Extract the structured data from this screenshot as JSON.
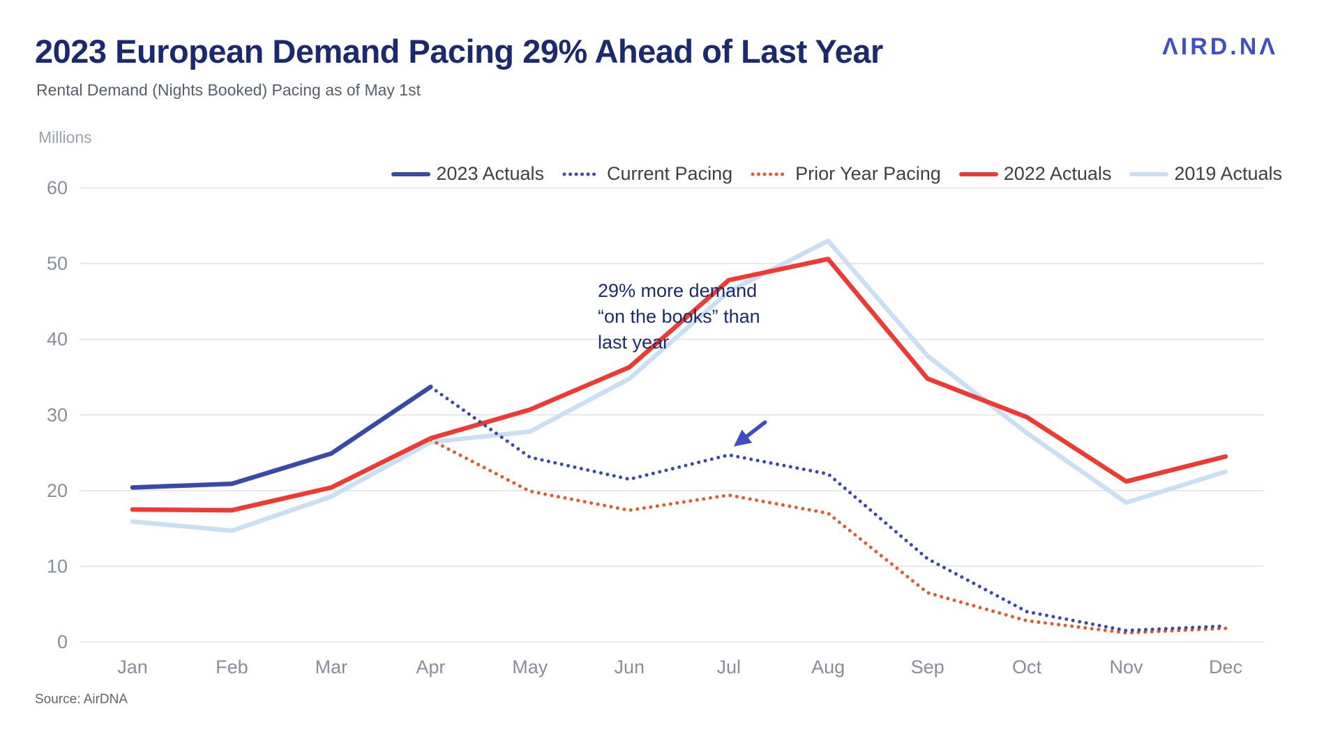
{
  "header": {
    "title": "2023 European Demand Pacing 29% Ahead of Last Year",
    "subtitle": "Rental Demand (Nights Booked) Pacing as of May 1st",
    "logo_text": "ΛIRD.NΛ",
    "logo_color": "#3F50C7"
  },
  "source": "Source: AirDNA",
  "annotation": {
    "lines": [
      "29% more demand",
      "“on the books” than",
      "last year"
    ],
    "target_series": "Current Pacing",
    "target_month": "Jul",
    "arrow_color": "#3D4EC4",
    "text_color": "#1A2C6E"
  },
  "chart_data": {
    "type": "line",
    "title": "2023 European Demand Pacing 29% Ahead of Last Year",
    "subtitle": "Rental Demand (Nights Booked) Pacing as of May 1st",
    "ylabel": "Millions",
    "xlabel": "",
    "categories": [
      "Jan",
      "Feb",
      "Mar",
      "Apr",
      "May",
      "Jun",
      "Jul",
      "Aug",
      "Sep",
      "Oct",
      "Nov",
      "Dec"
    ],
    "yticks": [
      0,
      10,
      20,
      30,
      40,
      50,
      60
    ],
    "ylim": [
      0,
      60
    ],
    "grid": true,
    "grid_color": "#E6E7E9",
    "axis_text_color": "#878D9B",
    "legend_position": "top-right",
    "series": [
      {
        "name": "2023 Actuals",
        "color": "#3949A8",
        "style": "solid",
        "values": [
          20.4,
          20.9,
          24.9,
          33.7,
          null,
          null,
          null,
          null,
          null,
          null,
          null,
          null
        ]
      },
      {
        "name": "Current Pacing",
        "color": "#3949A8",
        "style": "dotted",
        "values": [
          null,
          null,
          null,
          33.7,
          24.4,
          21.5,
          24.7,
          22.2,
          11.0,
          4.0,
          1.5,
          2.1
        ]
      },
      {
        "name": "Prior Year Pacing",
        "color": "#E05A2D",
        "style": "dotted",
        "values": [
          null,
          null,
          null,
          26.7,
          19.9,
          17.4,
          19.4,
          17.0,
          6.5,
          2.8,
          1.2,
          1.8
        ]
      },
      {
        "name": "2022 Actuals",
        "color": "#EE3A33",
        "style": "solid",
        "values": [
          17.5,
          17.4,
          20.4,
          26.9,
          30.7,
          36.3,
          47.8,
          50.6,
          34.8,
          29.7,
          21.2,
          24.5
        ]
      },
      {
        "name": "2019 Actuals",
        "color": "#CADFF4",
        "style": "solid",
        "values": [
          15.9,
          14.7,
          19.2,
          26.4,
          27.8,
          34.8,
          46.3,
          53.0,
          37.8,
          27.6,
          18.4,
          22.5
        ]
      }
    ]
  }
}
